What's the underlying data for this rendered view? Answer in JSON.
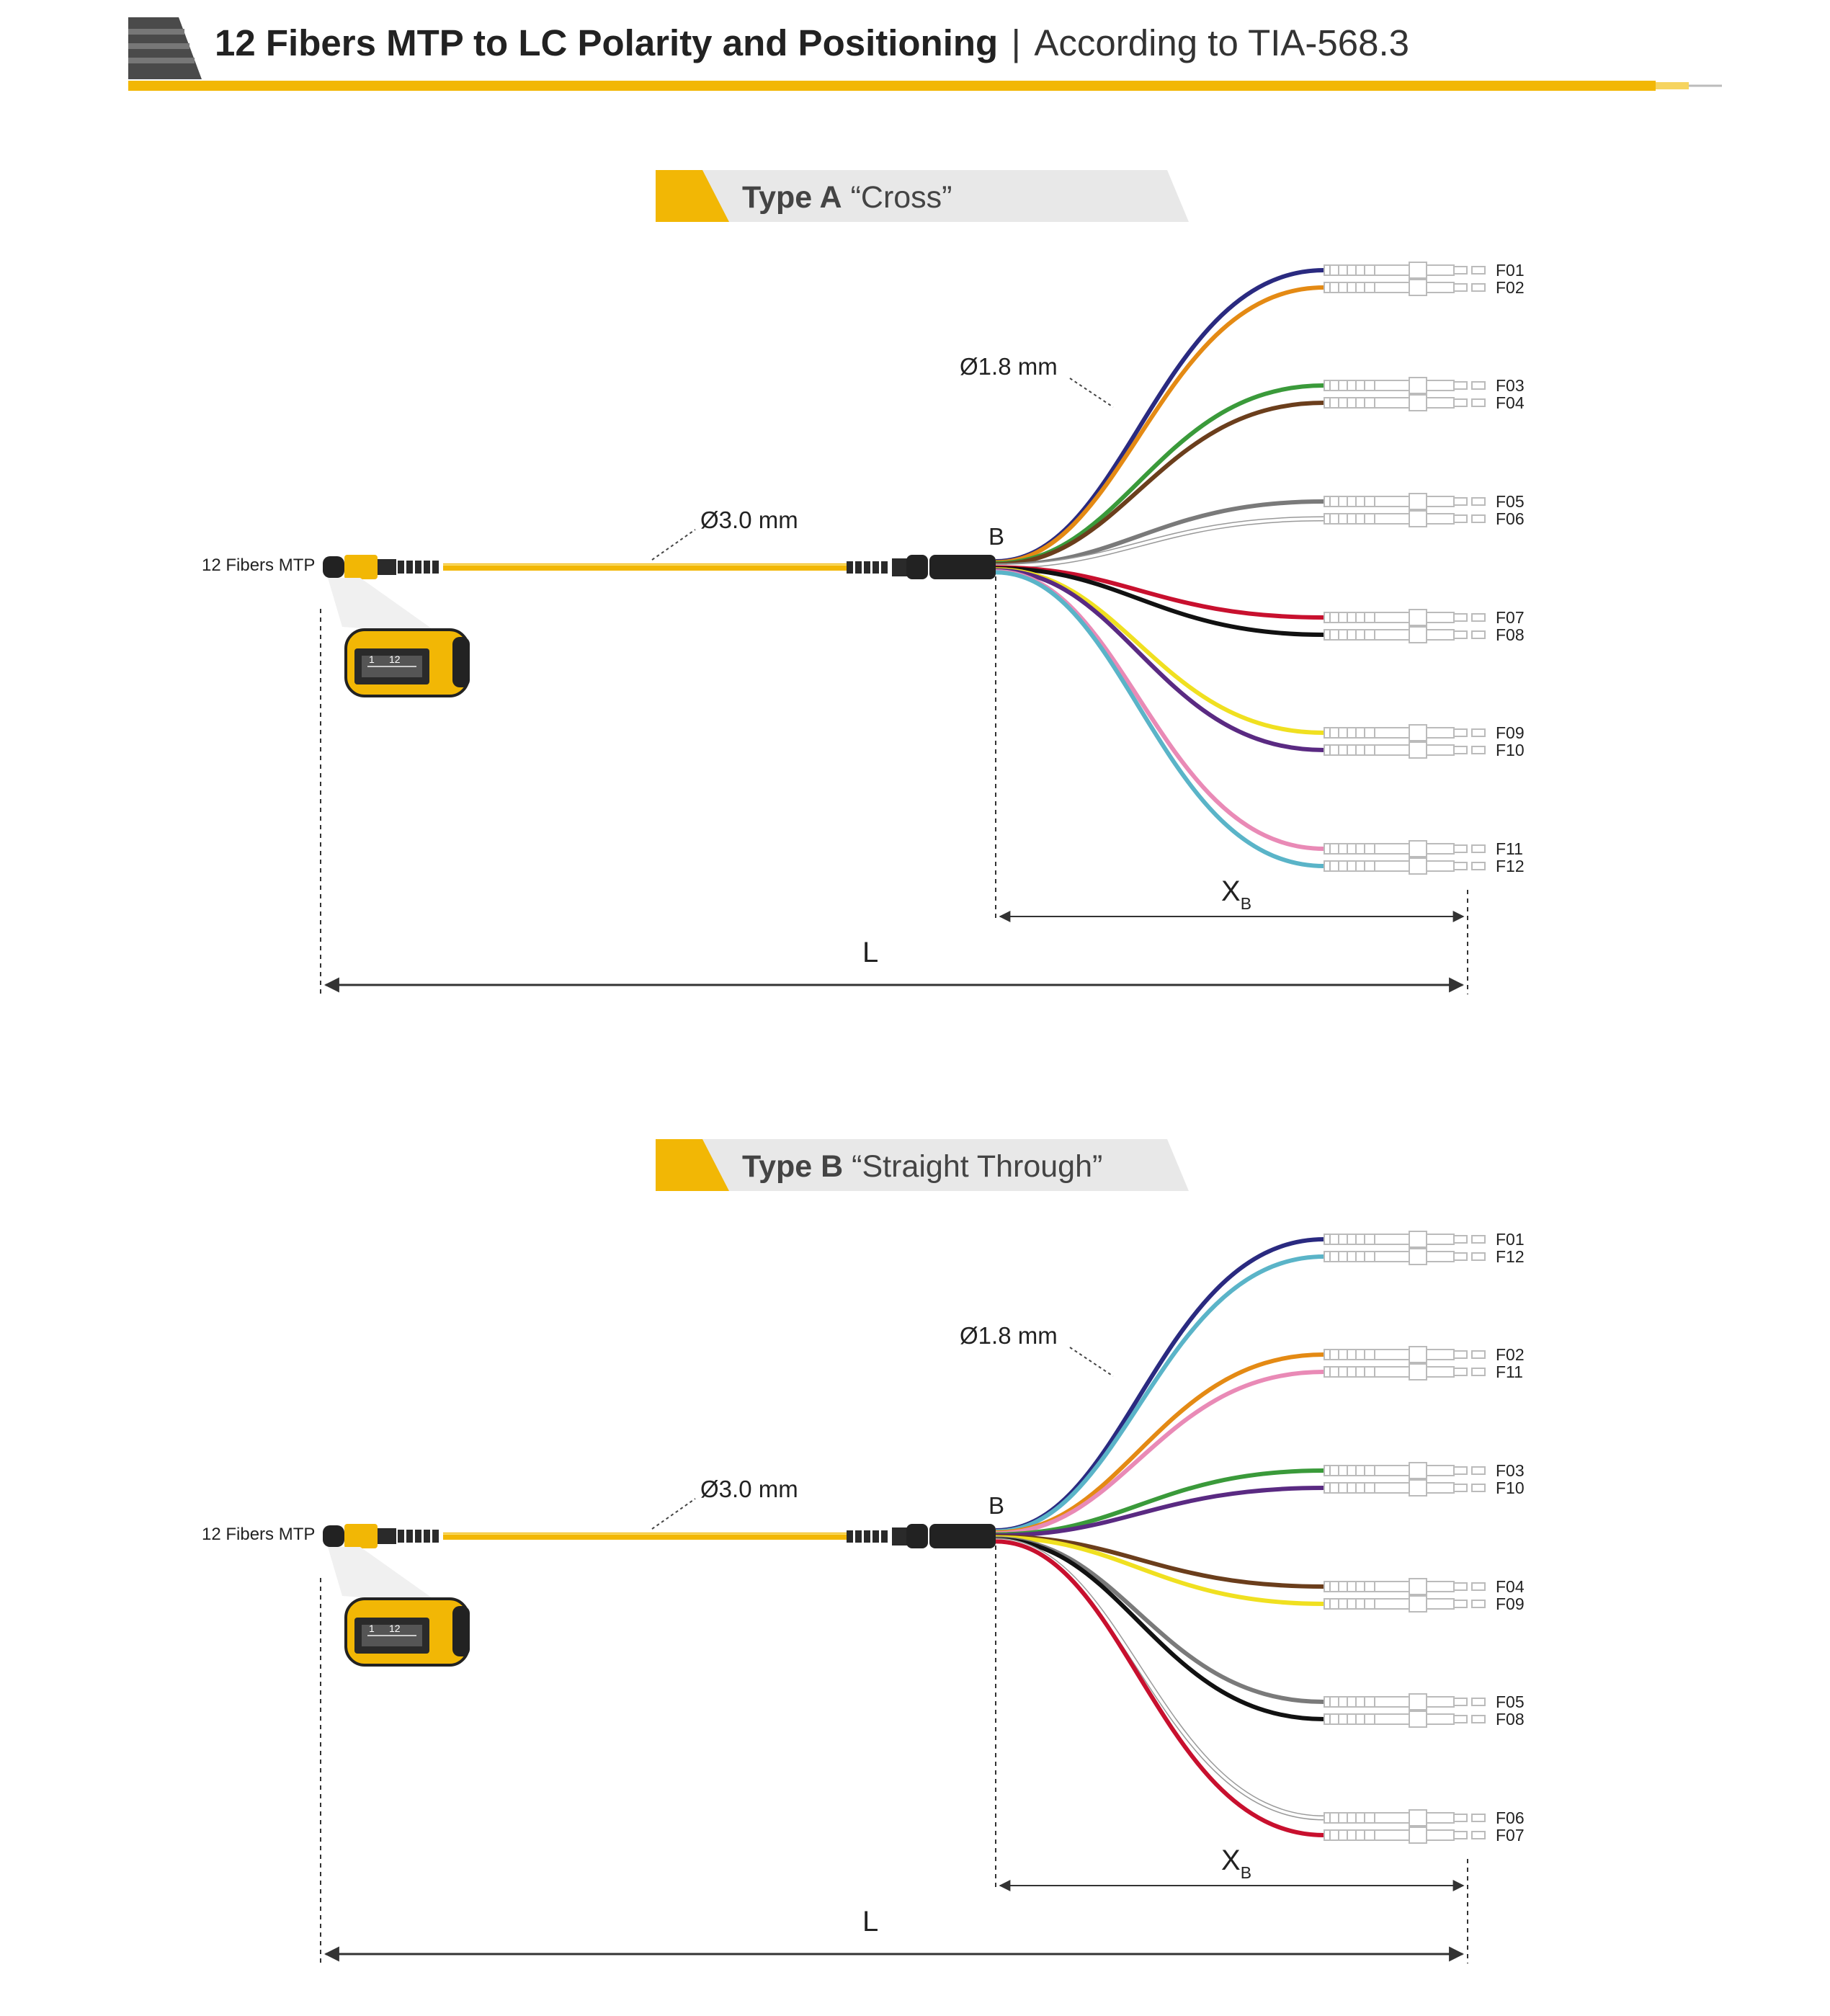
{
  "header": {
    "title": "12 Fibers MTP to LC Polarity and Positioning",
    "separator": "|",
    "subtitle": "According to TIA-568.3",
    "accent_color": "#f2b705"
  },
  "diagrams": [
    {
      "id": "type-a",
      "type_bold": "Type A",
      "type_rest": "“Cross”",
      "mtp_label": "12 Fibers MTP",
      "mtp_pins": [
        "1",
        "12"
      ],
      "trunk_diameter": "Ø3.0 mm",
      "fanout_diameter": "Ø1.8 mm",
      "breakout_label": "B",
      "x_label": "X",
      "x_sub": "B",
      "length_label": "L",
      "pairs": [
        {
          "top": {
            "label": "F01",
            "color": "#2a2a80"
          },
          "bottom": {
            "label": "F02",
            "color": "#e48a14"
          }
        },
        {
          "top": {
            "label": "F03",
            "color": "#3a9a3a"
          },
          "bottom": {
            "label": "F04",
            "color": "#6b3e1c"
          }
        },
        {
          "top": {
            "label": "F05",
            "color": "#7a7a7a"
          },
          "bottom": {
            "label": "F06",
            "color": "#dddddd"
          }
        },
        {
          "top": {
            "label": "F07",
            "color": "#c8102e"
          },
          "bottom": {
            "label": "F08",
            "color": "#111111"
          }
        },
        {
          "top": {
            "label": "F09",
            "color": "#f0e020"
          },
          "bottom": {
            "label": "F10",
            "color": "#5a2a82"
          }
        },
        {
          "top": {
            "label": "F11",
            "color": "#e98ab6"
          },
          "bottom": {
            "label": "F12",
            "color": "#5ab4c8"
          }
        }
      ]
    },
    {
      "id": "type-b",
      "type_bold": "Type B",
      "type_rest": "“Straight Through”",
      "mtp_label": "12 Fibers MTP",
      "mtp_pins": [
        "1",
        "12"
      ],
      "trunk_diameter": "Ø3.0 mm",
      "fanout_diameter": "Ø1.8 mm",
      "breakout_label": "B",
      "x_label": "X",
      "x_sub": "B",
      "length_label": "L",
      "pairs": [
        {
          "top": {
            "label": "F01",
            "color": "#2a2a80"
          },
          "bottom": {
            "label": "F12",
            "color": "#5ab4c8"
          }
        },
        {
          "top": {
            "label": "F02",
            "color": "#e48a14"
          },
          "bottom": {
            "label": "F11",
            "color": "#e98ab6"
          }
        },
        {
          "top": {
            "label": "F03",
            "color": "#3a9a3a"
          },
          "bottom": {
            "label": "F10",
            "color": "#5a2a82"
          }
        },
        {
          "top": {
            "label": "F04",
            "color": "#6b3e1c"
          },
          "bottom": {
            "label": "F09",
            "color": "#f0e020"
          }
        },
        {
          "top": {
            "label": "F05",
            "color": "#7a7a7a"
          },
          "bottom": {
            "label": "F08",
            "color": "#111111"
          }
        },
        {
          "top": {
            "label": "F06",
            "color": "#dddddd"
          },
          "bottom": {
            "label": "F07",
            "color": "#c8102e"
          }
        }
      ]
    }
  ]
}
